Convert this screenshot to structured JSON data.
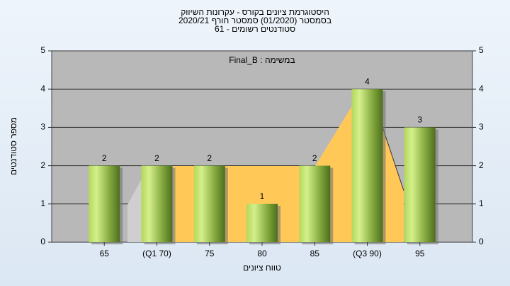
{
  "chart_data": {
    "type": "bar",
    "title": [
      "היסטוגרמת ציונים בקורס - עקרונות השיווק",
      "בסמסטר  (01/2020)  סמסטר חורף  2020/21",
      "סטודנטים רשומים - 61"
    ],
    "annotation": "במשימה : Final_B",
    "x_label": "טווח ציונים",
    "y_label": "מספר סטודנטים",
    "categories": [
      "65",
      "(Q1 70)",
      "75",
      "80",
      "85",
      "(Q3 90)",
      "95"
    ],
    "values": [
      2,
      2,
      2,
      1,
      2,
      4,
      3
    ],
    "ylim": [
      0,
      5
    ],
    "yticks": [
      0,
      1,
      2,
      3,
      4,
      5
    ],
    "y2lim": [
      0,
      5
    ],
    "y2ticks": [
      0,
      1,
      2,
      3,
      4,
      5
    ],
    "grid": true
  }
}
